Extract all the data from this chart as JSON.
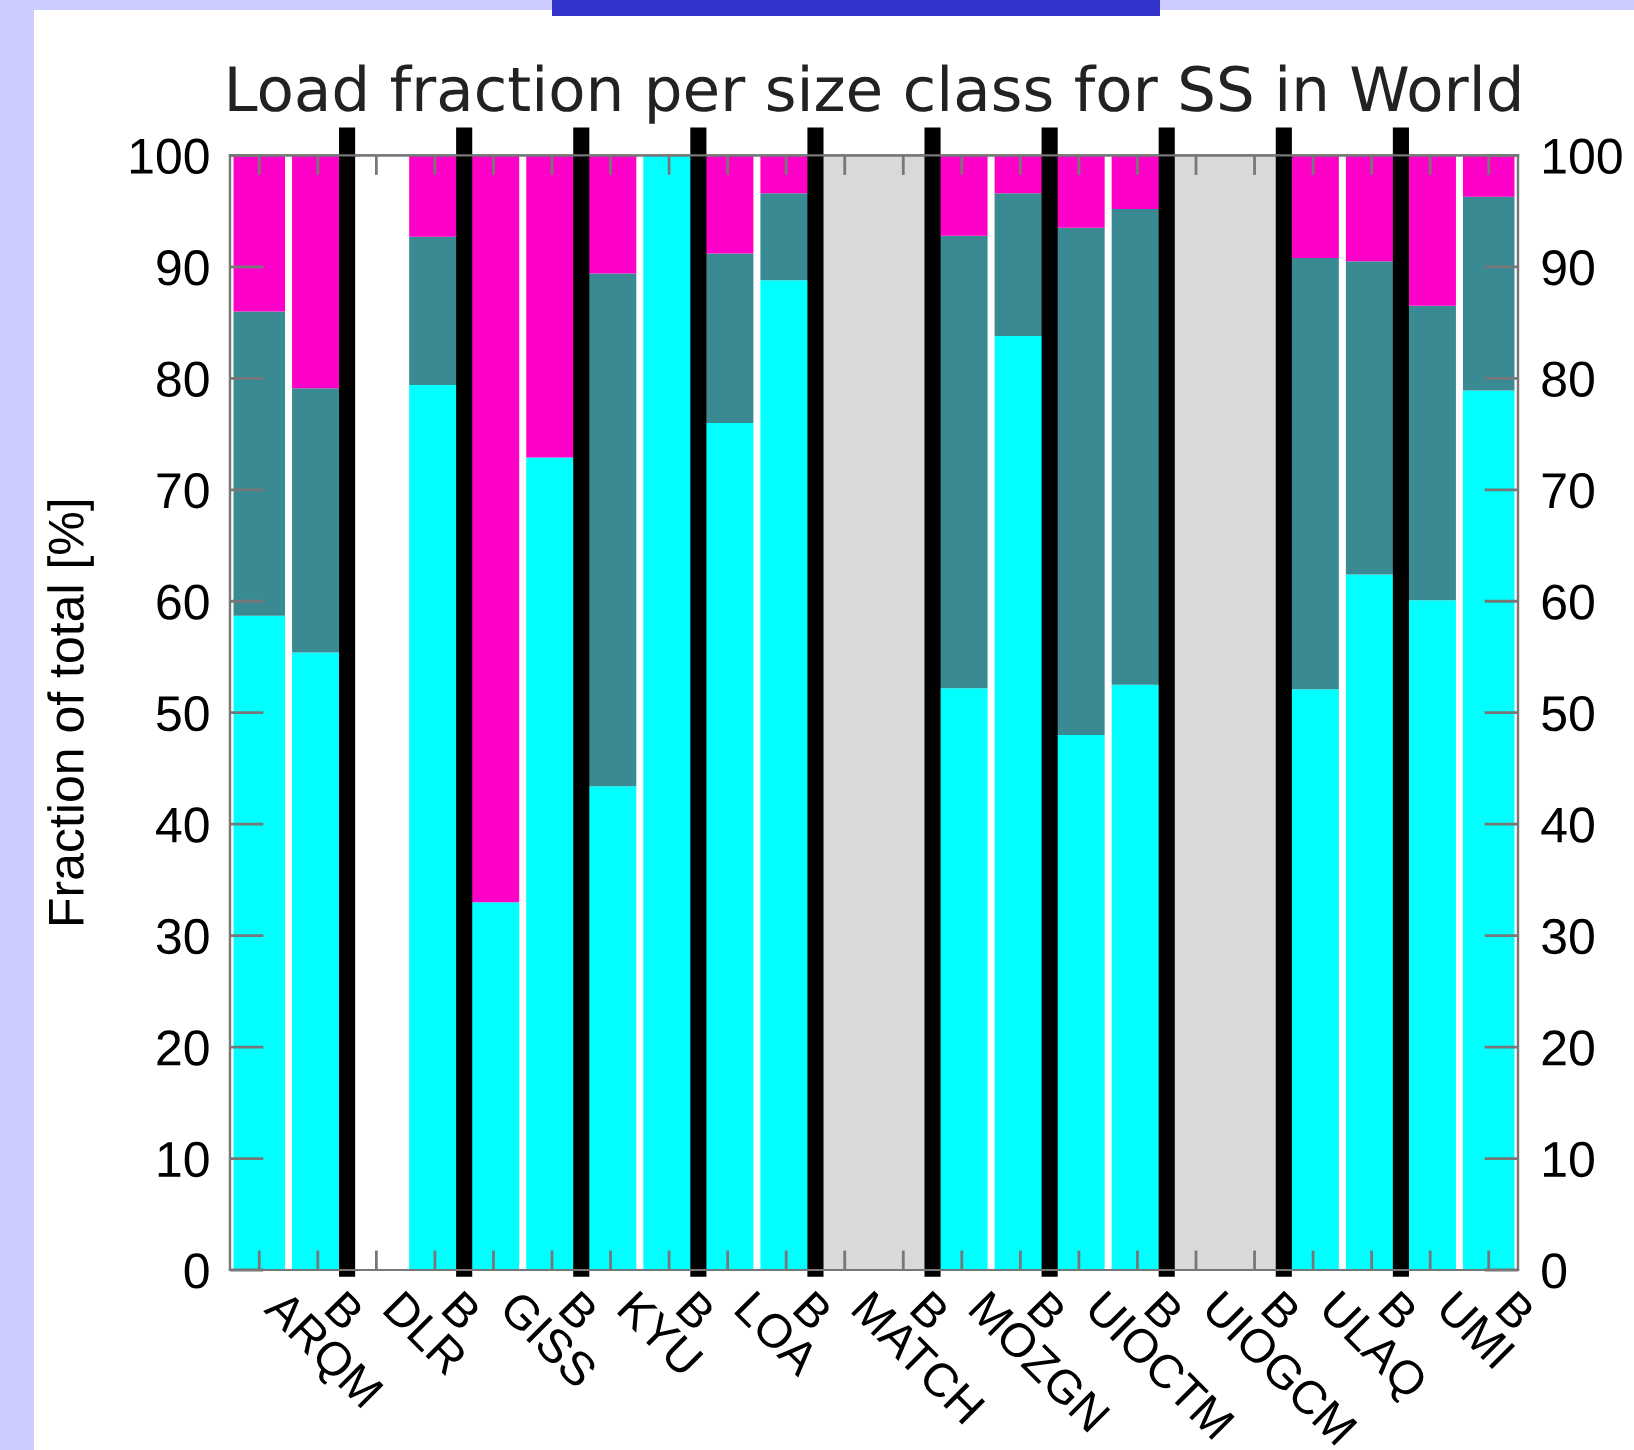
{
  "chart_data": {
    "type": "bar",
    "stacked": true,
    "grid": "x",
    "title": "Load fraction per size class for SS in World",
    "ylabel": "Fraction of total [%]",
    "categories": [
      "ARQM",
      "B",
      "DLR",
      "B",
      "GISS",
      "B",
      "KYU",
      "B",
      "LOA",
      "B",
      "MATCH",
      "B",
      "MOZGN",
      "B",
      "UIOCTM",
      "B",
      "UIOGCM",
      "B",
      "ULAQ",
      "B",
      "UMI",
      "B"
    ],
    "series": [
      {
        "color": "#00ffff",
        "values": [
          58.7,
          55.4,
          null,
          79.4,
          33.0,
          72.9,
          43.4,
          100,
          76.0,
          88.8,
          null,
          null,
          52.2,
          83.8,
          48.0,
          52.5,
          null,
          null,
          52.1,
          62.4,
          60.1,
          78.9
        ]
      },
      {
        "color": "#3a8a94",
        "values": [
          27.3,
          23.7,
          null,
          13.3,
          0,
          0,
          46.0,
          0,
          15.2,
          7.8,
          null,
          null,
          40.6,
          12.8,
          45.5,
          42.7,
          null,
          null,
          38.7,
          28.1,
          26.4,
          17.4
        ]
      },
      {
        "color": "#ff00c8",
        "values": [
          14.0,
          20.9,
          null,
          7.3,
          67.0,
          27.1,
          10.6,
          0,
          8.8,
          3.4,
          null,
          null,
          7.2,
          3.4,
          6.5,
          4.8,
          null,
          null,
          9.2,
          9.5,
          13.5,
          3.7
        ]
      }
    ],
    "ylim": [
      0,
      100
    ],
    "yticks": [
      0,
      10,
      20,
      30,
      40,
      50,
      60,
      70,
      80,
      90,
      100
    ],
    "y2lim": [
      0,
      100
    ],
    "y2ticks": [
      0,
      10,
      20,
      30,
      40,
      50,
      60,
      70,
      80,
      90,
      100
    ]
  }
}
